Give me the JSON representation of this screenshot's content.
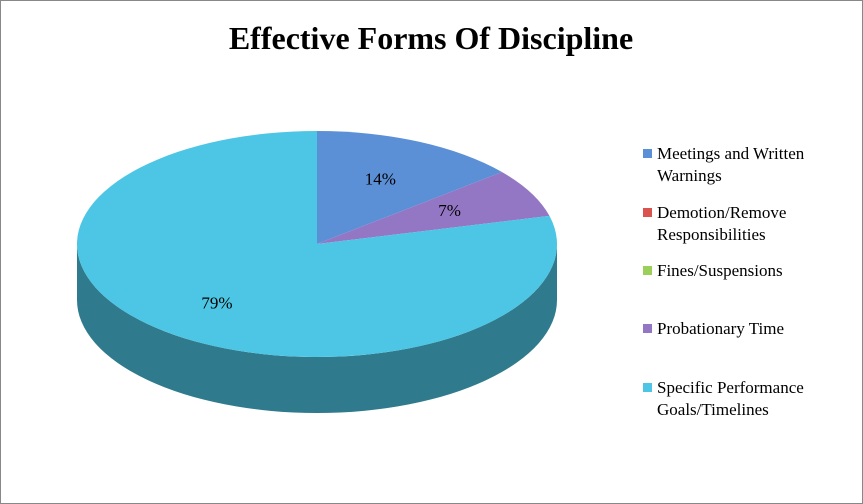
{
  "chart_data": {
    "type": "pie3d",
    "title": "Effective Forms Of Discipline",
    "categories": [
      "Meetings and Written Warnings",
      "Demotion/Remove Responsibilities",
      "Fines/Suspensions",
      "Probationary Time",
      "Specific Performance Goals/Timelines"
    ],
    "values": [
      14,
      0,
      0,
      7,
      79
    ],
    "value_labels": [
      "14%",
      null,
      null,
      "7%",
      "79%"
    ],
    "colors": [
      "#5b8fd6",
      "#d9534f",
      "#9bcf59",
      "#9477c4",
      "#4cc6e4"
    ],
    "legend": "right"
  }
}
